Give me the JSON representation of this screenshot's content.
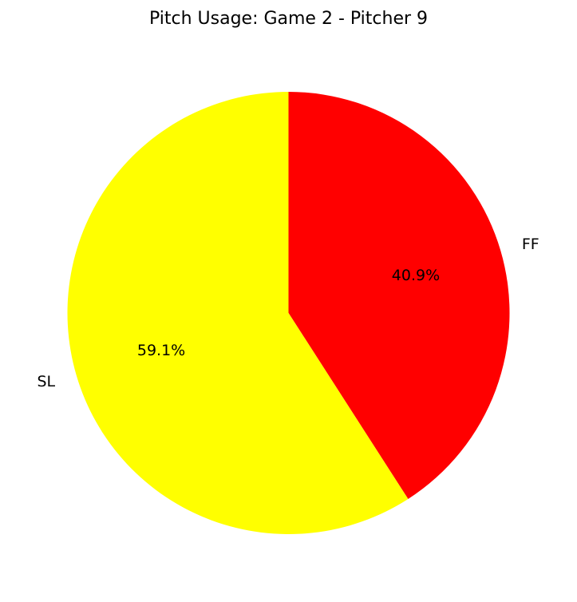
{
  "chart_data": {
    "type": "pie",
    "title": "Pitch Usage: Game 2 - Pitcher 9",
    "slices": [
      {
        "label": "FF",
        "value": 40.9,
        "pct_label": "40.9%",
        "color": "#ff0000"
      },
      {
        "label": "SL",
        "value": 59.1,
        "pct_label": "59.1%",
        "color": "#ffff00"
      }
    ],
    "start_angle": 90,
    "direction": "clockwise"
  }
}
